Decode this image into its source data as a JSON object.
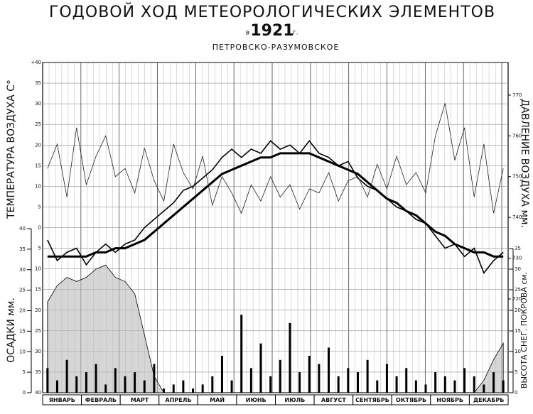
{
  "chart_data": [
    {
      "type": "line",
      "title": "ГОДОВОЙ ХОД МЕТЕОРОЛОГИЧЕСКИХ ЭЛЕМЕНТОВ",
      "year_prefix": "в",
      "year": "1921",
      "year_suffix": "г.",
      "subtitle": "ПЕТРОВСКО-РАЗУМОВСКОЕ",
      "ylabel": "ТЕМПЕРАТУРА ВОЗДУХА С°",
      "y2label": "ДАВЛЕНИЕ ВОЗДУХА мм.",
      "months": [
        "ЯНВАРЬ",
        "ФЕВРАЛЬ",
        "МАРТ",
        "АПРЕЛЬ",
        "МАЙ",
        "ИЮНЬ",
        "ИЮЛЬ",
        "АВГУСТ",
        "СЕНТЯБРЬ",
        "ОКТЯБРЬ",
        "НОЯБРЬ",
        "ДЕКАБРЬ"
      ],
      "ylim": [
        -40,
        40
      ],
      "yticks": [
        {
          "value": 40,
          "label": "+40"
        },
        35,
        30,
        25,
        20,
        15,
        10,
        5,
        0,
        {
          "value": -5,
          "label": "5"
        },
        {
          "value": -10,
          "label": "10"
        },
        {
          "value": -15,
          "label": "15"
        },
        {
          "value": -20,
          "label": "20"
        },
        {
          "value": -25,
          "label": "25"
        },
        {
          "value": -30,
          "label": "30"
        },
        {
          "value": -35,
          "label": "35"
        },
        {
          "value": -40,
          "label": "40"
        }
      ],
      "y2lim": [
        697,
        778
      ],
      "y2ticks": [
        720,
        730,
        740,
        750,
        760,
        770
      ],
      "series": [
        {
          "color": "#000000",
          "values": [
            -3,
            -8,
            -6,
            -5,
            -9,
            -6,
            -4,
            -6,
            -4,
            -3,
            0,
            2,
            4,
            6,
            9,
            10,
            12,
            14,
            17,
            19,
            17,
            19,
            18,
            21,
            19,
            20,
            18,
            21,
            18,
            17,
            15,
            16,
            12,
            10,
            9,
            7,
            5,
            4,
            2,
            1,
            -2,
            -5,
            -4,
            -7,
            -5,
            -11,
            -8,
            -6
          ]
        },
        {
          "color": "#000000",
          "values": [
            -7,
            -7,
            -7,
            -7,
            -7,
            -6,
            -6,
            -5,
            -5,
            -4,
            -3,
            -1,
            1,
            3,
            5,
            7,
            9,
            11,
            13,
            14,
            15,
            16,
            17,
            17,
            18,
            18,
            18,
            18,
            17,
            16,
            15,
            14,
            13,
            11,
            9,
            7,
            6,
            4,
            3,
            1,
            -1,
            -2,
            -4,
            -5,
            -6,
            -6,
            -7,
            -7
          ]
        },
        {
          "color": "#222222",
          "axis": "y2",
          "values": [
            752,
            758,
            745,
            762,
            748,
            755,
            760,
            750,
            752,
            746,
            757,
            749,
            744,
            758,
            751,
            747,
            755,
            743,
            750,
            746,
            741,
            748,
            744,
            750,
            745,
            748,
            742,
            747,
            746,
            751,
            744,
            749,
            750,
            745,
            753,
            747,
            755,
            748,
            751,
            746,
            760,
            768,
            754,
            762,
            745,
            758,
            741,
            752
          ]
        }
      ]
    },
    {
      "type": "bar",
      "ylabel": "ОСАДКИ мм.",
      "y2label": "ВЫСОТА СНЕГ. ПОКРОВА см.",
      "ylim": [
        0,
        40
      ],
      "yticks": [
        0,
        5,
        10,
        15,
        20,
        25,
        30,
        35,
        40
      ],
      "y2lim": [
        0,
        35
      ],
      "y2ticks": [
        0,
        5,
        10,
        15,
        20,
        25,
        30,
        35
      ],
      "color": "#000000",
      "values": [
        6,
        3,
        8,
        4,
        5,
        7,
        2,
        6,
        4,
        5,
        3,
        7,
        1,
        2,
        3,
        1,
        2,
        4,
        9,
        3,
        19,
        6,
        12,
        4,
        8,
        17,
        5,
        9,
        7,
        11,
        4,
        6,
        5,
        8,
        3,
        7,
        4,
        6,
        3,
        2,
        5,
        4,
        3,
        6,
        4,
        2,
        5,
        3
      ],
      "snow": {
        "color": "#bbbbbb",
        "values": [
          22,
          26,
          28,
          27,
          28,
          30,
          31,
          28,
          27,
          24,
          14,
          4,
          0,
          0,
          0,
          0,
          0,
          0,
          0,
          0,
          0,
          0,
          0,
          0,
          0,
          0,
          0,
          0,
          0,
          0,
          0,
          0,
          0,
          0,
          0,
          0,
          0,
          0,
          0,
          0,
          0,
          0,
          0,
          0,
          0,
          3,
          8,
          12
        ]
      }
    }
  ]
}
